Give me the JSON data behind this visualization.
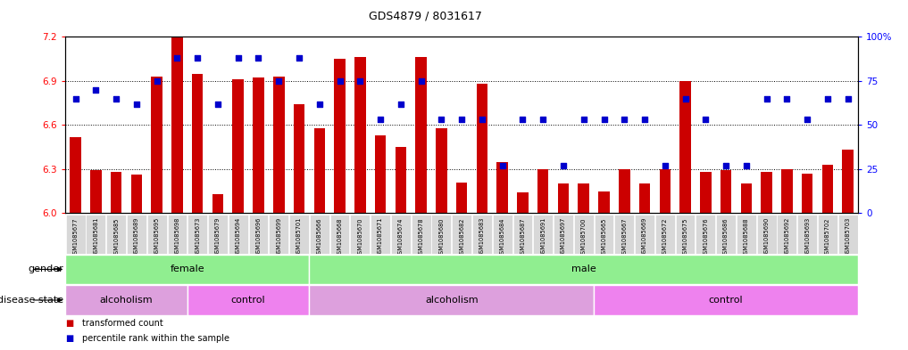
{
  "title": "GDS4879 / 8031617",
  "samples": [
    "GSM1085677",
    "GSM1085681",
    "GSM1085685",
    "GSM1085689",
    "GSM1085695",
    "GSM1085698",
    "GSM1085673",
    "GSM1085679",
    "GSM1085694",
    "GSM1085696",
    "GSM1085699",
    "GSM1085701",
    "GSM1085666",
    "GSM1085668",
    "GSM1085670",
    "GSM1085671",
    "GSM1085674",
    "GSM1085678",
    "GSM1085680",
    "GSM1085682",
    "GSM1085683",
    "GSM1085684",
    "GSM1085687",
    "GSM1085691",
    "GSM1085697",
    "GSM1085700",
    "GSM1085665",
    "GSM1085667",
    "GSM1085669",
    "GSM1085672",
    "GSM1085675",
    "GSM1085676",
    "GSM1085686",
    "GSM1085688",
    "GSM1085690",
    "GSM1085692",
    "GSM1085693",
    "GSM1085702",
    "GSM1085703"
  ],
  "bar_values": [
    6.52,
    6.29,
    6.28,
    6.26,
    6.93,
    7.2,
    6.95,
    6.13,
    6.91,
    6.92,
    6.93,
    6.74,
    6.58,
    7.05,
    7.06,
    6.53,
    6.45,
    7.06,
    6.58,
    6.21,
    6.88,
    6.35,
    6.14,
    6.3,
    6.2,
    6.2,
    6.15,
    6.3,
    6.2,
    6.3,
    6.9,
    6.28,
    6.29,
    6.2,
    6.28,
    6.3,
    6.27,
    6.33,
    6.43
  ],
  "percentile_values": [
    65,
    70,
    65,
    62,
    75,
    88,
    88,
    62,
    88,
    88,
    75,
    88,
    62,
    75,
    75,
    53,
    62,
    75,
    53,
    53,
    53,
    27,
    53,
    53,
    27,
    53,
    53,
    53,
    53,
    27,
    65,
    53,
    27,
    27,
    65,
    65,
    53,
    65,
    65
  ],
  "gender_groups": [
    {
      "label": "female",
      "start": 0,
      "end": 12,
      "color": "#90EE90"
    },
    {
      "label": "male",
      "start": 12,
      "end": 39,
      "color": "#90EE90"
    }
  ],
  "disease_groups": [
    {
      "label": "alcoholism",
      "start": 0,
      "end": 6,
      "color": "#DDA0DD"
    },
    {
      "label": "control",
      "start": 6,
      "end": 12,
      "color": "#EE82EE"
    },
    {
      "label": "alcoholism",
      "start": 12,
      "end": 26,
      "color": "#DDA0DD"
    },
    {
      "label": "control",
      "start": 26,
      "end": 39,
      "color": "#EE82EE"
    }
  ],
  "ylim_left": [
    6.0,
    7.2
  ],
  "ylim_right": [
    0,
    100
  ],
  "yticks_left": [
    6.0,
    6.3,
    6.6,
    6.9,
    7.2
  ],
  "yticks_right": [
    0,
    25,
    50,
    75,
    100
  ],
  "bar_color": "#CC0000",
  "dot_color": "#0000CC",
  "background_color": "#FFFFFF",
  "plot_bg_color": "#FFFFFF",
  "xtick_bg_color": "#D8D8D8",
  "grid_dotted_vals": [
    6.3,
    6.6,
    6.9
  ]
}
